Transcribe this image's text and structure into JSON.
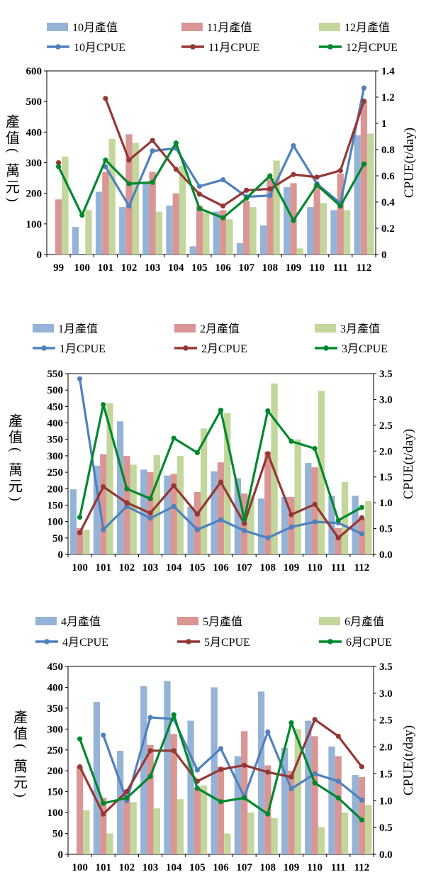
{
  "colors": {
    "blue": "#4f81bd",
    "blue_bar": "#95b3d7",
    "red": "#953735",
    "red_bar": "#d99694",
    "green": "#00882e",
    "green_bar": "#c3d69b"
  },
  "chart_data": [
    {
      "type": "bar+line",
      "categories": [
        "99",
        "100",
        "101",
        "102",
        "103",
        "104",
        "105",
        "106",
        "107",
        "108",
        "109",
        "110",
        "111",
        "112"
      ],
      "ylabel": "產值(萬元)",
      "y2label": "CPUE(t/day)",
      "ylim": [
        0,
        600
      ],
      "y2lim": [
        0,
        1.4
      ],
      "yticks": [
        "0",
        "100",
        "200",
        "300",
        "400",
        "500",
        "600"
      ],
      "y2ticks": [
        "0",
        "0.2",
        "0.4",
        "0.6",
        "0.8",
        "1",
        "1.2",
        "1.4"
      ],
      "bar_series": [
        {
          "name": "10月產值",
          "color": "blue_bar",
          "values": [
            null,
            90,
            205,
            155,
            235,
            160,
            27,
            140,
            37,
            95,
            220,
            155,
            145,
            390
          ]
        },
        {
          "name": "11月產值",
          "color": "red_bar",
          "values": [
            180,
            null,
            270,
            393,
            270,
            200,
            160,
            145,
            175,
            250,
            233,
            230,
            265,
            500
          ]
        },
        {
          "name": "12月產值",
          "color": "green_bar",
          "values": [
            320,
            145,
            378,
            365,
            140,
            290,
            137,
            115,
            155,
            307,
            20,
            168,
            145,
            395
          ]
        }
      ],
      "line_series": [
        {
          "name": "10月CPUE",
          "color": "blue",
          "values": [
            null,
            null,
            0.67,
            0.37,
            0.79,
            0.81,
            0.52,
            0.57,
            0.44,
            0.45,
            0.83,
            0.54,
            0.39,
            1.27
          ]
        },
        {
          "name": "11月CPUE",
          "color": "red",
          "values": [
            0.7,
            null,
            1.19,
            0.72,
            0.87,
            0.65,
            0.46,
            0.37,
            0.49,
            0.5,
            0.61,
            0.59,
            0.64,
            1.17
          ]
        },
        {
          "name": "12月CPUE",
          "color": "green",
          "values": [
            0.67,
            0.3,
            0.72,
            0.54,
            0.55,
            0.85,
            0.35,
            0.28,
            0.43,
            0.6,
            0.26,
            0.53,
            0.37,
            0.69
          ]
        }
      ]
    },
    {
      "type": "bar+line",
      "categories": [
        "100",
        "101",
        "102",
        "103",
        "104",
        "105",
        "106",
        "107",
        "108",
        "109",
        "110",
        "111",
        "112"
      ],
      "ylabel": "產值(萬元)",
      "y2label": "CPUE(t/day)",
      "ylim": [
        0,
        550
      ],
      "y2lim": [
        0,
        3.5
      ],
      "yticks": [
        "0",
        "50",
        "100",
        "150",
        "200",
        "250",
        "300",
        "350",
        "400",
        "450",
        "500",
        "550"
      ],
      "y2ticks": [
        "0.0",
        "0.5",
        "1.0",
        "1.5",
        "2.0",
        "2.5",
        "3.0",
        "3.5"
      ],
      "bar_series": [
        {
          "name": "1月產值",
          "color": "blue_bar",
          "values": [
            198,
            270,
            405,
            258,
            240,
            145,
            253,
            232,
            170,
            175,
            278,
            178,
            178
          ]
        },
        {
          "name": "2月產值",
          "color": "red_bar",
          "values": [
            80,
            305,
            300,
            250,
            245,
            190,
            280,
            185,
            313,
            175,
            265,
            80,
            110
          ]
        },
        {
          "name": "3月產值",
          "color": "green_bar",
          "values": [
            75,
            460,
            273,
            302,
            300,
            383,
            430,
            180,
            520,
            350,
            498,
            220,
            162
          ]
        }
      ],
      "line_series": [
        {
          "name": "1月CPUE",
          "color": "blue",
          "values": [
            3.4,
            0.48,
            0.93,
            0.7,
            0.93,
            0.48,
            0.67,
            0.46,
            0.32,
            0.53,
            0.63,
            0.61,
            0.4
          ]
        },
        {
          "name": "2月CPUE",
          "color": "red",
          "values": [
            0.42,
            1.31,
            1.0,
            0.8,
            1.33,
            0.78,
            1.4,
            0.6,
            1.95,
            0.77,
            0.97,
            0.32,
            0.71
          ]
        },
        {
          "name": "3月CPUE",
          "color": "green",
          "values": [
            0.72,
            2.9,
            1.27,
            1.08,
            2.25,
            1.97,
            2.79,
            0.68,
            2.78,
            2.19,
            2.05,
            0.66,
            0.91
          ]
        }
      ]
    },
    {
      "type": "bar+line",
      "categories": [
        "100",
        "101",
        "102",
        "103",
        "104",
        "105",
        "106",
        "107",
        "108",
        "109",
        "110",
        "111",
        "112"
      ],
      "ylabel": "產值(萬元)",
      "y2label": "CPUE(t/day)",
      "ylim": [
        0,
        450
      ],
      "y2lim": [
        0,
        3.5
      ],
      "yticks": [
        "0",
        "50",
        "100",
        "150",
        "200",
        "250",
        "300",
        "350",
        "400",
        "450"
      ],
      "y2ticks": [
        "0.0",
        "0.5",
        "1.0",
        "1.5",
        "2.0",
        "2.5",
        "3.0",
        "3.5"
      ],
      "bar_series": [
        {
          "name": "4月產值",
          "color": "blue_bar",
          "values": [
            null,
            365,
            248,
            403,
            415,
            320,
            400,
            235,
            390,
            255,
            320,
            258,
            190
          ]
        },
        {
          "name": "5月產值",
          "color": "red_bar",
          "values": [
            210,
            135,
            155,
            262,
            288,
            160,
            210,
            295,
            213,
            200,
            283,
            235,
            185
          ]
        },
        {
          "name": "6月產值",
          "color": "green_bar",
          "values": [
            105,
            50,
            125,
            110,
            132,
            165,
            50,
            100,
            87,
            300,
            65,
            100,
            118
          ]
        }
      ],
      "line_series": [
        {
          "name": "4月CPUE",
          "color": "blue",
          "values": [
            null,
            2.22,
            1.0,
            2.55,
            2.52,
            1.57,
            1.97,
            1.07,
            2.28,
            1.22,
            1.5,
            1.36,
            1.01
          ]
        },
        {
          "name": "5月CPUE",
          "color": "red",
          "values": [
            1.63,
            0.75,
            1.17,
            1.93,
            1.93,
            1.36,
            1.58,
            1.66,
            1.53,
            1.44,
            2.51,
            2.2,
            1.63
          ]
        },
        {
          "name": "6月CPUE",
          "color": "green",
          "values": [
            2.15,
            0.95,
            1.05,
            1.45,
            2.6,
            1.23,
            0.98,
            1.05,
            0.75,
            2.45,
            1.33,
            1.05,
            0.64
          ]
        }
      ]
    }
  ]
}
